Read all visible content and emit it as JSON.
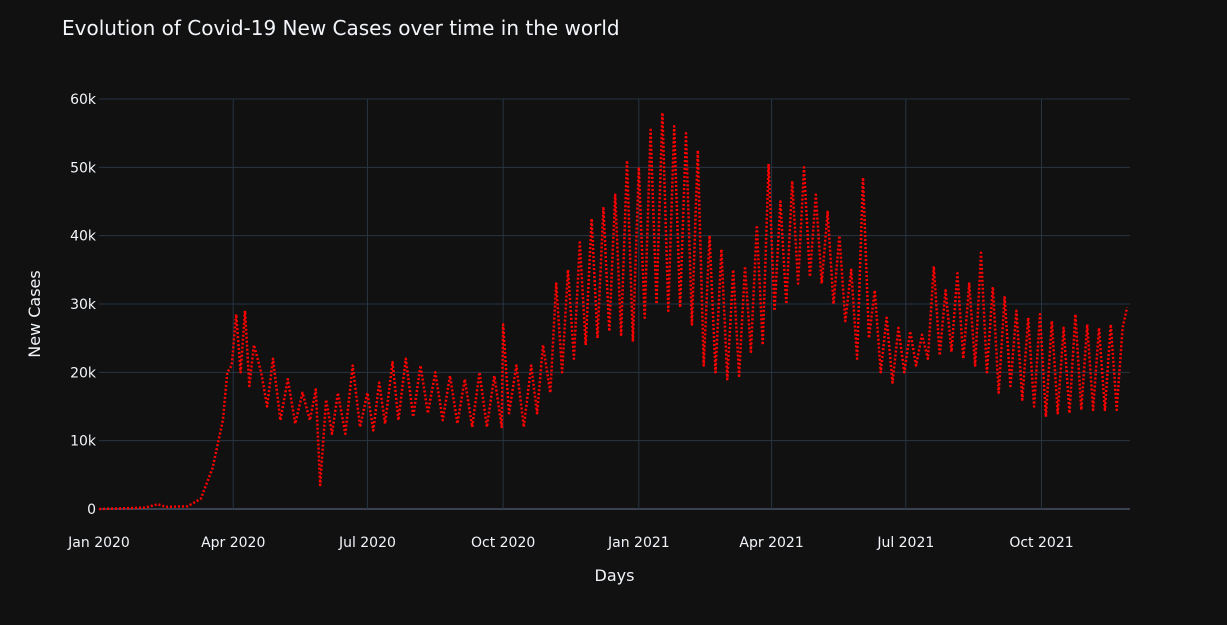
{
  "chart_data": {
    "type": "line",
    "title": "Evolution of Covid-19 New Cases over time in the world",
    "xlabel": "Days",
    "ylabel": "New Cases",
    "xlim": [
      "2020-01-01",
      "2021-11-30"
    ],
    "ylim": [
      0,
      60000
    ],
    "x_ticks": [
      {
        "date": "2020-01-01",
        "label": "Jan 2020"
      },
      {
        "date": "2020-04-01",
        "label": "Apr 2020"
      },
      {
        "date": "2020-07-01",
        "label": "Jul 2020"
      },
      {
        "date": "2020-10-01",
        "label": "Oct 2020"
      },
      {
        "date": "2021-01-01",
        "label": "Jan 2021"
      },
      {
        "date": "2021-04-01",
        "label": "Apr 2021"
      },
      {
        "date": "2021-07-01",
        "label": "Jul 2021"
      },
      {
        "date": "2021-10-01",
        "label": "Oct 2021"
      }
    ],
    "y_ticks": [
      {
        "value": 0,
        "label": "0"
      },
      {
        "value": 10000,
        "label": "10k"
      },
      {
        "value": 20000,
        "label": "20k"
      },
      {
        "value": 30000,
        "label": "30k"
      },
      {
        "value": 40000,
        "label": "40k"
      },
      {
        "value": 50000,
        "label": "50k"
      },
      {
        "value": 60000,
        "label": "60k"
      }
    ],
    "grid": true,
    "line_style": "dotted",
    "series": [
      {
        "color": "#ff0000",
        "points": [
          [
            "2020-01-01",
            0
          ],
          [
            "2020-02-01",
            200
          ],
          [
            "2020-02-10",
            700
          ],
          [
            "2020-02-15",
            300
          ],
          [
            "2020-03-01",
            400
          ],
          [
            "2020-03-10",
            1500
          ],
          [
            "2020-03-18",
            6000
          ],
          [
            "2020-03-25",
            13000
          ],
          [
            "2020-03-28",
            20000
          ],
          [
            "2020-03-31",
            21000
          ],
          [
            "2020-04-03",
            28500
          ],
          [
            "2020-04-06",
            20000
          ],
          [
            "2020-04-09",
            29000
          ],
          [
            "2020-04-12",
            18000
          ],
          [
            "2020-04-15",
            24000
          ],
          [
            "2020-04-20",
            20000
          ],
          [
            "2020-04-24",
            15000
          ],
          [
            "2020-04-28",
            22000
          ],
          [
            "2020-05-03",
            13000
          ],
          [
            "2020-05-08",
            19000
          ],
          [
            "2020-05-13",
            12500
          ],
          [
            "2020-05-18",
            17000
          ],
          [
            "2020-05-23",
            13000
          ],
          [
            "2020-05-27",
            17500
          ],
          [
            "2020-05-30",
            3500
          ],
          [
            "2020-06-03",
            16000
          ],
          [
            "2020-06-07",
            11000
          ],
          [
            "2020-06-11",
            17000
          ],
          [
            "2020-06-16",
            11000
          ],
          [
            "2020-06-21",
            21000
          ],
          [
            "2020-06-26",
            12000
          ],
          [
            "2020-07-01",
            17000
          ],
          [
            "2020-07-05",
            11500
          ],
          [
            "2020-07-09",
            18500
          ],
          [
            "2020-07-13",
            12500
          ],
          [
            "2020-07-18",
            21500
          ],
          [
            "2020-07-22",
            13000
          ],
          [
            "2020-07-27",
            22000
          ],
          [
            "2020-08-01",
            13500
          ],
          [
            "2020-08-06",
            21000
          ],
          [
            "2020-08-11",
            14000
          ],
          [
            "2020-08-16",
            20000
          ],
          [
            "2020-08-21",
            13000
          ],
          [
            "2020-08-26",
            19500
          ],
          [
            "2020-08-31",
            12500
          ],
          [
            "2020-09-05",
            19000
          ],
          [
            "2020-09-10",
            12000
          ],
          [
            "2020-09-15",
            20000
          ],
          [
            "2020-09-20",
            12000
          ],
          [
            "2020-09-25",
            19500
          ],
          [
            "2020-09-30",
            12000
          ],
          [
            "2020-10-01",
            27000
          ],
          [
            "2020-10-05",
            14000
          ],
          [
            "2020-10-10",
            21000
          ],
          [
            "2020-10-15",
            12000
          ],
          [
            "2020-10-20",
            21000
          ],
          [
            "2020-10-24",
            14000
          ],
          [
            "2020-10-28",
            24000
          ],
          [
            "2020-11-02",
            17000
          ],
          [
            "2020-11-06",
            33000
          ],
          [
            "2020-11-10",
            20000
          ],
          [
            "2020-11-14",
            35000
          ],
          [
            "2020-11-18",
            22000
          ],
          [
            "2020-11-22",
            39000
          ],
          [
            "2020-11-26",
            24000
          ],
          [
            "2020-11-30",
            42500
          ],
          [
            "2020-12-04",
            25000
          ],
          [
            "2020-12-08",
            44000
          ],
          [
            "2020-12-12",
            26000
          ],
          [
            "2020-12-16",
            46000
          ],
          [
            "2020-12-20",
            25500
          ],
          [
            "2020-12-24",
            51000
          ],
          [
            "2020-12-28",
            24500
          ],
          [
            "2021-01-01",
            50000
          ],
          [
            "2021-01-05",
            28000
          ],
          [
            "2021-01-09",
            55500
          ],
          [
            "2021-01-13",
            30000
          ],
          [
            "2021-01-17",
            58000
          ],
          [
            "2021-01-21",
            29000
          ],
          [
            "2021-01-25",
            56000
          ],
          [
            "2021-01-29",
            29500
          ],
          [
            "2021-02-02",
            55000
          ],
          [
            "2021-02-06",
            27000
          ],
          [
            "2021-02-10",
            52500
          ],
          [
            "2021-02-14",
            21000
          ],
          [
            "2021-02-18",
            40000
          ],
          [
            "2021-02-22",
            20000
          ],
          [
            "2021-02-26",
            38000
          ],
          [
            "2021-03-02",
            19000
          ],
          [
            "2021-03-06",
            35000
          ],
          [
            "2021-03-10",
            19500
          ],
          [
            "2021-03-14",
            35500
          ],
          [
            "2021-03-18",
            23000
          ],
          [
            "2021-03-22",
            41500
          ],
          [
            "2021-03-26",
            24000
          ],
          [
            "2021-03-30",
            50500
          ],
          [
            "2021-04-03",
            29000
          ],
          [
            "2021-04-07",
            45000
          ],
          [
            "2021-04-11",
            30000
          ],
          [
            "2021-04-15",
            48000
          ],
          [
            "2021-04-19",
            33000
          ],
          [
            "2021-04-23",
            50000
          ],
          [
            "2021-04-27",
            34000
          ],
          [
            "2021-05-01",
            46000
          ],
          [
            "2021-05-05",
            33000
          ],
          [
            "2021-05-09",
            43500
          ],
          [
            "2021-05-13",
            30000
          ],
          [
            "2021-05-17",
            40000
          ],
          [
            "2021-05-21",
            27500
          ],
          [
            "2021-05-25",
            35000
          ],
          [
            "2021-05-29",
            22000
          ],
          [
            "2021-06-02",
            48500
          ],
          [
            "2021-06-06",
            25000
          ],
          [
            "2021-06-10",
            32000
          ],
          [
            "2021-06-14",
            20000
          ],
          [
            "2021-06-18",
            28000
          ],
          [
            "2021-06-22",
            18500
          ],
          [
            "2021-06-26",
            26500
          ],
          [
            "2021-06-30",
            20000
          ],
          [
            "2021-07-04",
            26000
          ],
          [
            "2021-07-08",
            21000
          ],
          [
            "2021-07-12",
            25500
          ],
          [
            "2021-07-16",
            22000
          ],
          [
            "2021-07-20",
            35500
          ],
          [
            "2021-07-24",
            22500
          ],
          [
            "2021-07-28",
            32000
          ],
          [
            "2021-08-01",
            23000
          ],
          [
            "2021-08-05",
            34500
          ],
          [
            "2021-08-09",
            22000
          ],
          [
            "2021-08-13",
            33000
          ],
          [
            "2021-08-17",
            21000
          ],
          [
            "2021-08-21",
            37500
          ],
          [
            "2021-08-25",
            20000
          ],
          [
            "2021-08-29",
            32500
          ],
          [
            "2021-09-02",
            17000
          ],
          [
            "2021-09-06",
            31000
          ],
          [
            "2021-09-10",
            18000
          ],
          [
            "2021-09-14",
            29000
          ],
          [
            "2021-09-18",
            16000
          ],
          [
            "2021-09-22",
            28000
          ],
          [
            "2021-09-26",
            15000
          ],
          [
            "2021-09-30",
            28500
          ],
          [
            "2021-10-04",
            13500
          ],
          [
            "2021-10-08",
            27500
          ],
          [
            "2021-10-12",
            14000
          ],
          [
            "2021-10-16",
            26500
          ],
          [
            "2021-10-20",
            14000
          ],
          [
            "2021-10-24",
            28500
          ],
          [
            "2021-10-28",
            14500
          ],
          [
            "2021-11-01",
            27000
          ],
          [
            "2021-11-05",
            14500
          ],
          [
            "2021-11-09",
            26500
          ],
          [
            "2021-11-13",
            14500
          ],
          [
            "2021-11-17",
            27000
          ],
          [
            "2021-11-21",
            14500
          ],
          [
            "2021-11-25",
            26500
          ],
          [
            "2021-11-28",
            29500
          ]
        ]
      }
    ]
  }
}
